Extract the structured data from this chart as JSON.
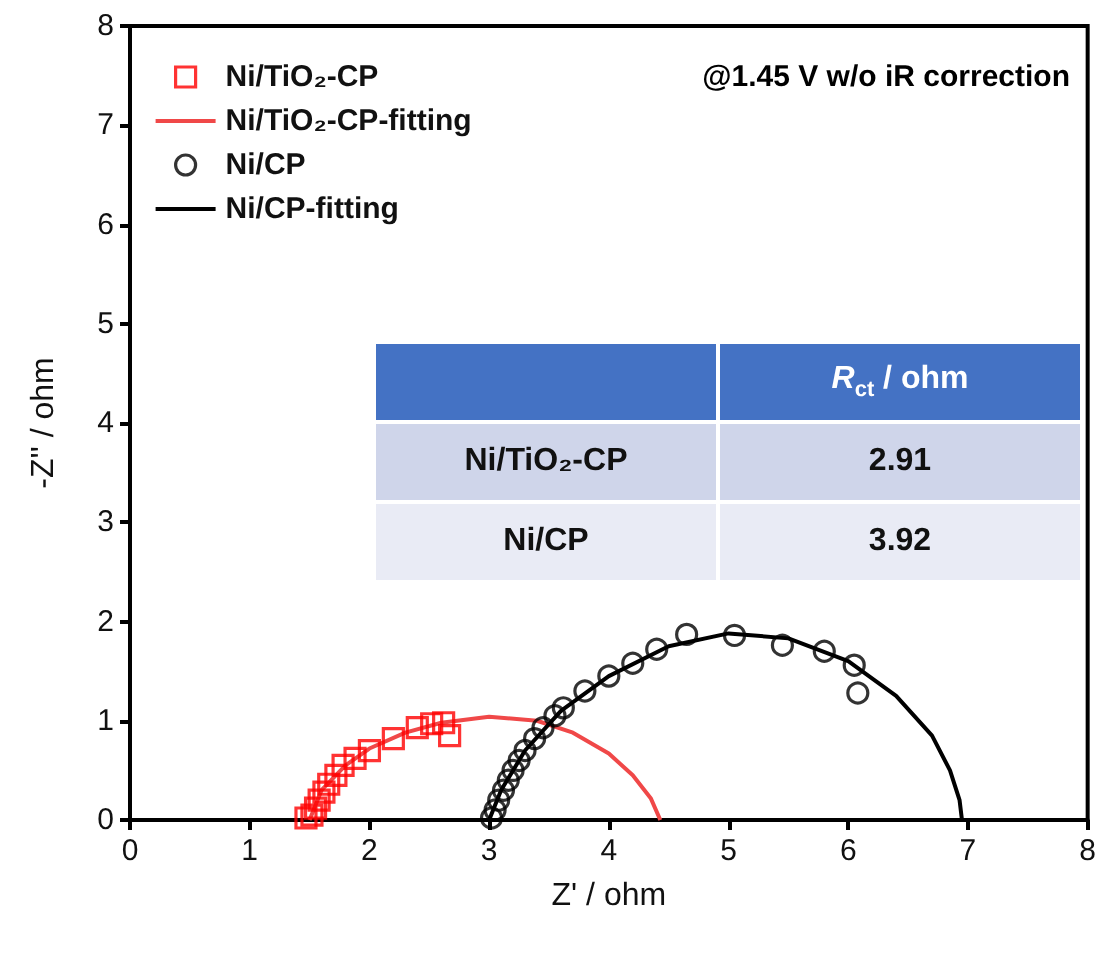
{
  "chart_data": {
    "type": "scatter",
    "xlabel": "Z' / ohm",
    "ylabel": "-Z'' / ohm",
    "xlim": [
      0,
      8
    ],
    "xticks": [
      0,
      1,
      2,
      3,
      4,
      5,
      6,
      7,
      8
    ],
    "ylim": [
      0,
      8
    ],
    "yticks": [
      0,
      1,
      2,
      3,
      4,
      5,
      6,
      7,
      8
    ],
    "grid": false,
    "legend": "top left",
    "annotations": [
      "@1.45 V w/o iR correction",
      "R$_{ct}$ / ohm",
      "Ni/TiO₂-CP",
      "2.91",
      "Ni/CP",
      "3.92"
    ],
    "series": [
      {
        "name": "Ni/TiO₂-CP",
        "marker": "square",
        "color": "#ff0000",
        "x": [
          1.47,
          1.52,
          1.55,
          1.58,
          1.62,
          1.66,
          1.72,
          1.78,
          1.88,
          2.0,
          2.2,
          2.4,
          2.52,
          2.62,
          2.67
        ],
        "values": [
          0.02,
          0.05,
          0.12,
          0.2,
          0.28,
          0.36,
          0.45,
          0.55,
          0.62,
          0.7,
          0.82,
          0.93,
          0.97,
          0.98,
          0.85
        ]
      },
      {
        "name": "Ni/TiO₂-CP-fitting",
        "type": "line",
        "color": "#f04848",
        "x": [
          1.5,
          1.6,
          1.8,
          2.0,
          2.3,
          2.6,
          3.0,
          3.4,
          3.7,
          4.0,
          4.2,
          4.35,
          4.43
        ],
        "values": [
          0,
          0.3,
          0.55,
          0.72,
          0.88,
          0.98,
          1.04,
          1.0,
          0.88,
          0.67,
          0.45,
          0.22,
          0
        ]
      },
      {
        "name": "Ni/CP",
        "marker": "circle",
        "color": "#000000",
        "x": [
          3.02,
          3.05,
          3.08,
          3.12,
          3.16,
          3.2,
          3.25,
          3.3,
          3.38,
          3.45,
          3.55,
          3.62,
          3.8,
          4.0,
          4.2,
          4.4,
          4.65,
          5.05,
          5.45,
          5.8,
          6.05,
          6.08
        ],
        "values": [
          0.02,
          0.1,
          0.2,
          0.3,
          0.4,
          0.5,
          0.6,
          0.7,
          0.82,
          0.93,
          1.05,
          1.13,
          1.3,
          1.45,
          1.58,
          1.72,
          1.87,
          1.86,
          1.76,
          1.7,
          1.56,
          1.28
        ]
      },
      {
        "name": "Ni/CP-fitting",
        "type": "line",
        "color": "#000000",
        "x": [
          3.0,
          3.1,
          3.3,
          3.6,
          4.0,
          4.5,
          5.0,
          5.5,
          6.0,
          6.4,
          6.7,
          6.85,
          6.93,
          6.95
        ],
        "values": [
          0,
          0.3,
          0.7,
          1.1,
          1.45,
          1.75,
          1.88,
          1.83,
          1.6,
          1.25,
          0.85,
          0.5,
          0.2,
          0
        ]
      }
    ]
  }
}
